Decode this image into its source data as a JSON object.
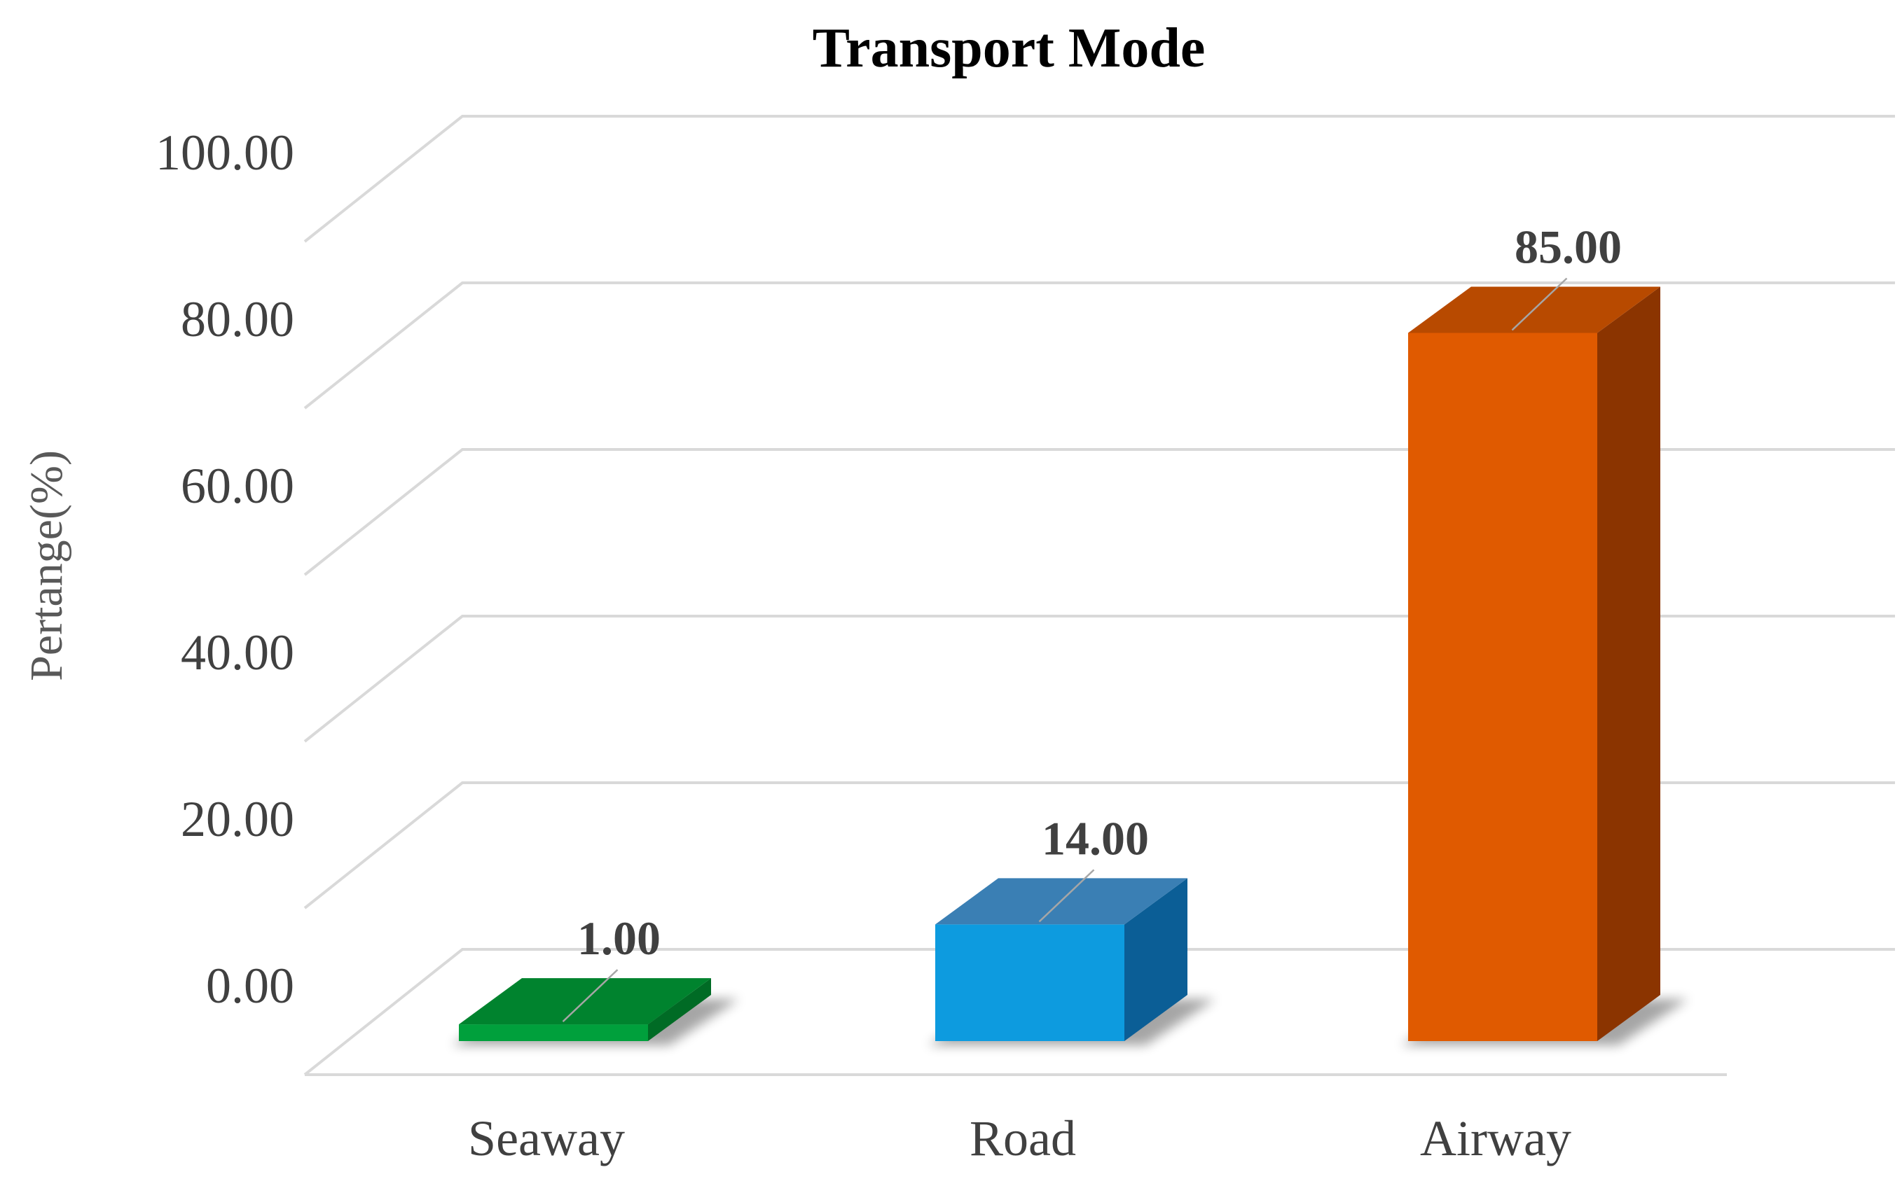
{
  "chart_data": {
    "type": "bar",
    "title": "Transport Mode",
    "ylabel": "Pertange(%)",
    "xlabel": "",
    "categories": [
      "Seaway",
      "Road",
      "Airway"
    ],
    "values": [
      1.0,
      14.0,
      85.0
    ],
    "value_labels": [
      "1.00",
      "14.00",
      "85.00"
    ],
    "yticks": [
      0,
      20,
      40,
      60,
      80,
      100
    ],
    "ytick_labels": [
      "0.00",
      "20.00",
      "40.00",
      "60.00",
      "80.00",
      "100.00"
    ],
    "ylim": [
      0,
      100
    ],
    "grid": true,
    "legend": "none",
    "style": "3d-column",
    "colors": {
      "Seaway": {
        "front": "#00A03C",
        "top": "#00832E",
        "side": "#006B25"
      },
      "Road": {
        "front": "#0D9BDF",
        "top": "#3A7FB4",
        "side": "#0B5E96"
      },
      "Airway": {
        "front": "#E05A00",
        "top": "#B84A00",
        "side": "#8B3400"
      }
    }
  }
}
